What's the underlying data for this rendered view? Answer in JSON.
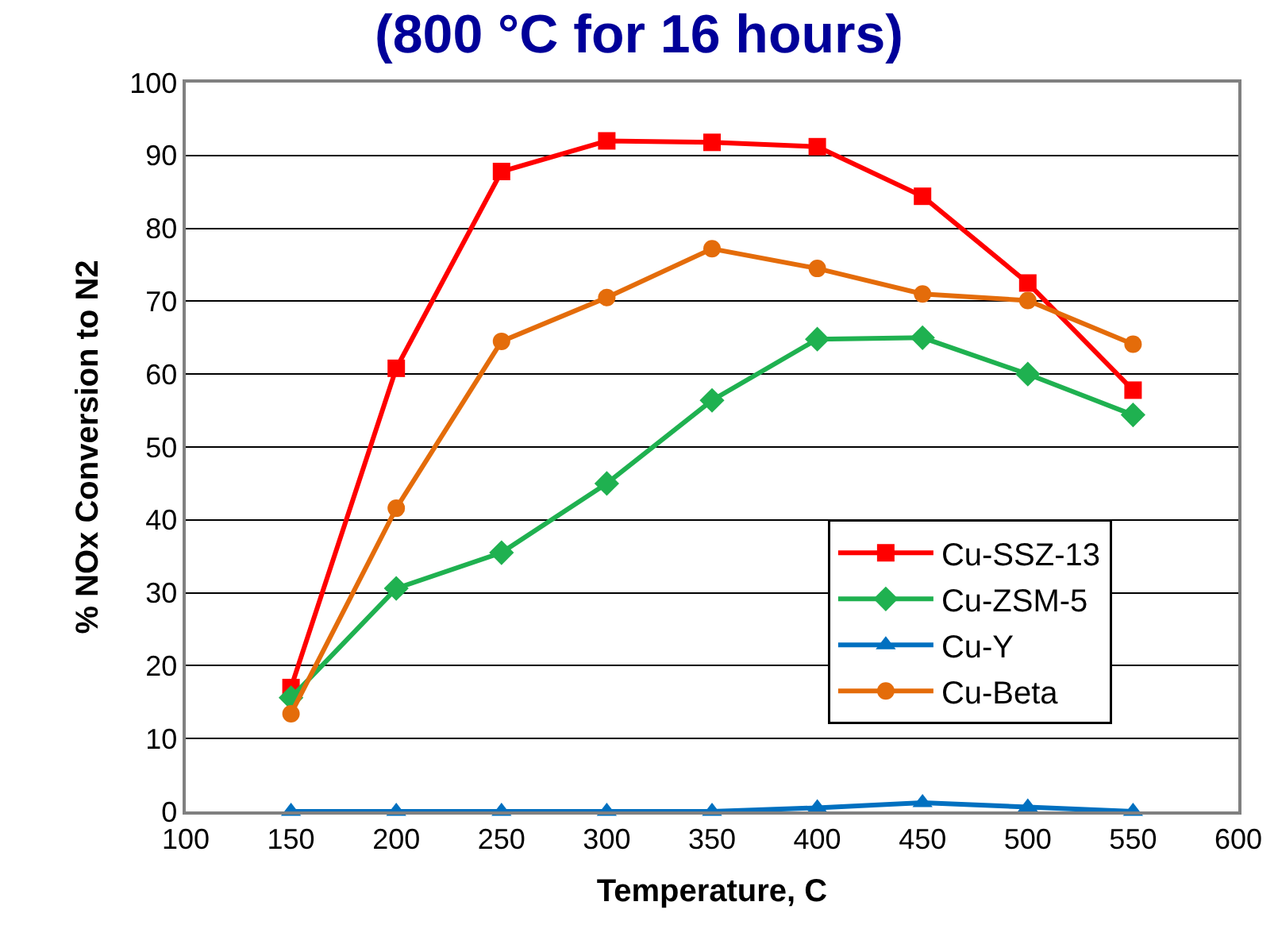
{
  "chart_data": {
    "type": "line",
    "title": "(800 °C for 16 hours)",
    "xlabel": "Temperature, C",
    "ylabel": "% NOx Conversion to N2",
    "x": [
      150,
      200,
      250,
      300,
      350,
      400,
      450,
      500,
      550
    ],
    "series": [
      {
        "name": "Cu-SSZ-13",
        "color": "#ff0000",
        "marker": "square",
        "values": [
          17,
          60.8,
          87.8,
          92,
          91.8,
          91.2,
          84.4,
          72.5,
          57.8
        ]
      },
      {
        "name": "Cu-ZSM-5",
        "color": "#1fb150",
        "marker": "diamond",
        "values": [
          15.6,
          30.6,
          35.5,
          45,
          56.4,
          64.8,
          65,
          60,
          54.4
        ]
      },
      {
        "name": "Cu-Y",
        "color": "#0070c0",
        "marker": "triangle",
        "values": [
          0,
          0,
          0,
          0,
          0,
          0.5,
          1.2,
          0.6,
          0
        ]
      },
      {
        "name": "Cu-Beta",
        "color": "#e46c0a",
        "marker": "circle",
        "values": [
          13.4,
          41.6,
          64.5,
          70.5,
          77.2,
          74.5,
          71,
          70.1,
          64.1
        ]
      }
    ],
    "xlim": [
      100,
      600
    ],
    "xticks": [
      100,
      150,
      200,
      250,
      300,
      350,
      400,
      450,
      500,
      550,
      600
    ],
    "ylim": [
      0,
      100
    ],
    "yticks": [
      0,
      10,
      20,
      30,
      40,
      50,
      60,
      70,
      80,
      90,
      100
    ],
    "grid": "y",
    "legend": "right",
    "line_style": "solid"
  }
}
